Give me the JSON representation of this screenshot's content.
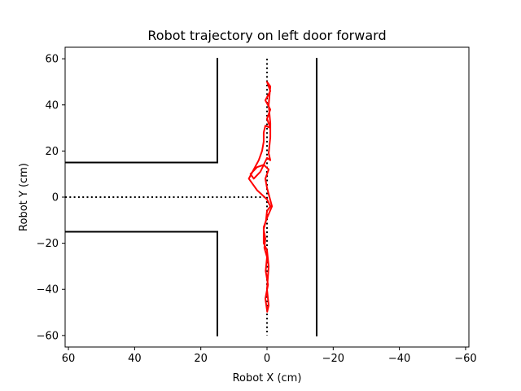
{
  "chart_data": {
    "type": "line",
    "title": "Robot trajectory on left door forward",
    "xlabel": "Robot X (cm)",
    "ylabel": "Robot Y (cm)",
    "xlim": [
      61,
      -61
    ],
    "ylim": [
      -65,
      65
    ],
    "x_inverted": true,
    "grid": false,
    "x_ticks": [
      60,
      40,
      20,
      0,
      -20,
      -40,
      -60
    ],
    "x_tick_labels": [
      "60",
      "40",
      "20",
      "0",
      "−20",
      "−40",
      "−60"
    ],
    "y_ticks": [
      60,
      40,
      20,
      0,
      -20,
      -40,
      -60
    ],
    "y_tick_labels": [
      "60",
      "40",
      "20",
      "0",
      "−20",
      "−40",
      "−60"
    ],
    "colors": {
      "walls": "#000000",
      "path": "#000000",
      "trajectory": "#ff0000"
    },
    "walls": [
      {
        "x": [
          15,
          15
        ],
        "y": [
          60,
          15
        ]
      },
      {
        "x": [
          15,
          61
        ],
        "y": [
          15,
          15
        ]
      },
      {
        "x": [
          15,
          15
        ],
        "y": [
          -60,
          -15
        ]
      },
      {
        "x": [
          15,
          61
        ],
        "y": [
          -15,
          -15
        ]
      },
      {
        "x": [
          -15,
          -15
        ],
        "y": [
          60,
          -60
        ]
      }
    ],
    "reference_path": [
      {
        "x": [
          0,
          0
        ],
        "y": [
          60,
          -60
        ]
      },
      {
        "x": [
          61,
          0
        ],
        "y": [
          0,
          0
        ]
      }
    ],
    "trajectory": [
      {
        "x": 0,
        "y": -49
      },
      {
        "x": 0.5,
        "y": -44
      },
      {
        "x": -0.3,
        "y": -38
      },
      {
        "x": 0.4,
        "y": -32
      },
      {
        "x": 0,
        "y": -26
      },
      {
        "x": 0.8,
        "y": -22
      },
      {
        "x": 0.5,
        "y": -18
      },
      {
        "x": 1,
        "y": -14
      },
      {
        "x": 0.3,
        "y": -10
      },
      {
        "x": 0,
        "y": -6
      },
      {
        "x": -1,
        "y": -4
      },
      {
        "x": 0,
        "y": -1
      },
      {
        "x": 1.5,
        "y": 1
      },
      {
        "x": 3,
        "y": 3
      },
      {
        "x": 4,
        "y": 5
      },
      {
        "x": 5.5,
        "y": 8
      },
      {
        "x": 4,
        "y": 12
      },
      {
        "x": 2.5,
        "y": 16
      },
      {
        "x": 1.5,
        "y": 20
      },
      {
        "x": 1,
        "y": 24
      },
      {
        "x": 1,
        "y": 28
      },
      {
        "x": 0.5,
        "y": 31
      },
      {
        "x": -1,
        "y": 30
      },
      {
        "x": 0,
        "y": 34
      },
      {
        "x": -1,
        "y": 38
      },
      {
        "x": 0.5,
        "y": 42
      },
      {
        "x": -1,
        "y": 46
      },
      {
        "x": 0,
        "y": 50
      },
      {
        "x": -1,
        "y": 48
      },
      {
        "x": -0.5,
        "y": 40
      },
      {
        "x": -1,
        "y": 32
      },
      {
        "x": -1,
        "y": 26
      },
      {
        "x": -0.5,
        "y": 19
      },
      {
        "x": -1,
        "y": 16
      },
      {
        "x": 0,
        "y": 17
      },
      {
        "x": 1,
        "y": 14
      },
      {
        "x": 2,
        "y": 11
      },
      {
        "x": 4,
        "y": 8
      },
      {
        "x": 5,
        "y": 10
      },
      {
        "x": 3,
        "y": 13
      },
      {
        "x": 1,
        "y": 14
      },
      {
        "x": -0.5,
        "y": 12
      },
      {
        "x": 0.5,
        "y": 8
      },
      {
        "x": 0,
        "y": 4
      },
      {
        "x": -1.5,
        "y": -4
      },
      {
        "x": 0,
        "y": -9
      },
      {
        "x": 1,
        "y": -13
      },
      {
        "x": 1,
        "y": -20
      },
      {
        "x": 0,
        "y": -23
      },
      {
        "x": -0.5,
        "y": -30
      },
      {
        "x": 0,
        "y": -40
      },
      {
        "x": -0.5,
        "y": -47
      },
      {
        "x": 0,
        "y": -50
      }
    ]
  }
}
